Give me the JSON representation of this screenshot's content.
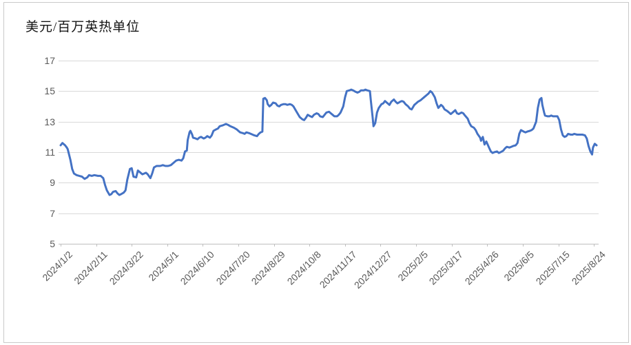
{
  "colors": {
    "line": "#4472C4",
    "gridline": "#d9d9d9",
    "axis": "#bfbfbf",
    "tick_label": "#595959",
    "title_text": "#141414",
    "frame_border": "#c9c9c9",
    "background": "#ffffff"
  },
  "chart_data": {
    "type": "line",
    "title": "美元/百万英热单位",
    "xlabel": "",
    "ylabel": "",
    "ylim": [
      5,
      17
    ],
    "y_ticks": [
      17,
      15,
      13,
      11,
      9,
      7,
      5
    ],
    "x_tick_labels": [
      "2024/1/2",
      "2024/2/11",
      "2024/3/22",
      "2024/5/1",
      "2024/6/10",
      "2024/7/20",
      "2024/8/29",
      "2024/10/8",
      "2024/11/17",
      "2024/12/27",
      "2025/2/5",
      "2025/3/17",
      "2025/4/26",
      "2025/6/5",
      "2025/7/15",
      "2025/8/24"
    ],
    "x_tick_day_offsets": [
      0,
      40,
      80,
      120,
      160,
      200,
      240,
      280,
      320,
      360,
      400,
      440,
      480,
      520,
      560,
      600
    ],
    "x_unit": "days since 2024/1/2",
    "x_range_days": [
      0,
      603
    ],
    "grid": "horizontal",
    "legend": "none",
    "points": [
      [
        0,
        11.45
      ],
      [
        2,
        11.6
      ],
      [
        5,
        11.45
      ],
      [
        7,
        11.3
      ],
      [
        8,
        11.2
      ],
      [
        11,
        10.5
      ],
      [
        13,
        9.9
      ],
      [
        15,
        9.6
      ],
      [
        18,
        9.5
      ],
      [
        21,
        9.45
      ],
      [
        24,
        9.4
      ],
      [
        27,
        9.25
      ],
      [
        30,
        9.35
      ],
      [
        32,
        9.5
      ],
      [
        35,
        9.45
      ],
      [
        38,
        9.5
      ],
      [
        42,
        9.45
      ],
      [
        45,
        9.45
      ],
      [
        48,
        9.3
      ],
      [
        50,
        8.85
      ],
      [
        52,
        8.5
      ],
      [
        55,
        8.2
      ],
      [
        57,
        8.25
      ],
      [
        59,
        8.4
      ],
      [
        62,
        8.45
      ],
      [
        64,
        8.3
      ],
      [
        66,
        8.2
      ],
      [
        68,
        8.25
      ],
      [
        71,
        8.35
      ],
      [
        73,
        8.5
      ],
      [
        75,
        9.2
      ],
      [
        78,
        9.9
      ],
      [
        80,
        9.95
      ],
      [
        82,
        9.4
      ],
      [
        85,
        9.35
      ],
      [
        87,
        9.8
      ],
      [
        89,
        9.7
      ],
      [
        92,
        9.55
      ],
      [
        94,
        9.6
      ],
      [
        96,
        9.65
      ],
      [
        98,
        9.55
      ],
      [
        101,
        9.3
      ],
      [
        103,
        9.6
      ],
      [
        105,
        10.0
      ],
      [
        108,
        10.1
      ],
      [
        112,
        10.1
      ],
      [
        115,
        10.15
      ],
      [
        118,
        10.1
      ],
      [
        121,
        10.1
      ],
      [
        124,
        10.15
      ],
      [
        127,
        10.3
      ],
      [
        130,
        10.45
      ],
      [
        133,
        10.5
      ],
      [
        136,
        10.45
      ],
      [
        138,
        10.6
      ],
      [
        140,
        11.05
      ],
      [
        142,
        11.1
      ],
      [
        143,
        11.8
      ],
      [
        145,
        12.3
      ],
      [
        146,
        12.4
      ],
      [
        148,
        12.15
      ],
      [
        149,
        11.95
      ],
      [
        152,
        11.9
      ],
      [
        154,
        11.85
      ],
      [
        156,
        11.95
      ],
      [
        158,
        12.0
      ],
      [
        161,
        11.9
      ],
      [
        163,
        11.95
      ],
      [
        165,
        12.05
      ],
      [
        168,
        11.95
      ],
      [
        170,
        12.1
      ],
      [
        172,
        12.4
      ],
      [
        175,
        12.5
      ],
      [
        177,
        12.55
      ],
      [
        179,
        12.7
      ],
      [
        182,
        12.75
      ],
      [
        184,
        12.8
      ],
      [
        186,
        12.85
      ],
      [
        188,
        12.8
      ],
      [
        191,
        12.7
      ],
      [
        193,
        12.65
      ],
      [
        195,
        12.6
      ],
      [
        198,
        12.5
      ],
      [
        200,
        12.4
      ],
      [
        202,
        12.3
      ],
      [
        205,
        12.25
      ],
      [
        207,
        12.2
      ],
      [
        209,
        12.3
      ],
      [
        212,
        12.25
      ],
      [
        214,
        12.2
      ],
      [
        216,
        12.15
      ],
      [
        218,
        12.1
      ],
      [
        221,
        12.05
      ],
      [
        223,
        12.2
      ],
      [
        225,
        12.3
      ],
      [
        227,
        12.35
      ],
      [
        228,
        14.5
      ],
      [
        230,
        14.55
      ],
      [
        232,
        14.4
      ],
      [
        233,
        14.15
      ],
      [
        235,
        14.0
      ],
      [
        237,
        14.1
      ],
      [
        239,
        14.25
      ],
      [
        242,
        14.2
      ],
      [
        244,
        14.05
      ],
      [
        246,
        14.0
      ],
      [
        248,
        14.1
      ],
      [
        251,
        14.15
      ],
      [
        253,
        14.15
      ],
      [
        255,
        14.1
      ],
      [
        258,
        14.15
      ],
      [
        260,
        14.1
      ],
      [
        262,
        14.0
      ],
      [
        265,
        13.7
      ],
      [
        267,
        13.5
      ],
      [
        269,
        13.3
      ],
      [
        272,
        13.15
      ],
      [
        274,
        13.1
      ],
      [
        276,
        13.25
      ],
      [
        278,
        13.45
      ],
      [
        281,
        13.35
      ],
      [
        283,
        13.3
      ],
      [
        285,
        13.45
      ],
      [
        288,
        13.55
      ],
      [
        290,
        13.5
      ],
      [
        292,
        13.35
      ],
      [
        295,
        13.3
      ],
      [
        297,
        13.45
      ],
      [
        299,
        13.6
      ],
      [
        302,
        13.65
      ],
      [
        304,
        13.55
      ],
      [
        306,
        13.45
      ],
      [
        308,
        13.35
      ],
      [
        311,
        13.35
      ],
      [
        313,
        13.45
      ],
      [
        315,
        13.6
      ],
      [
        318,
        14.0
      ],
      [
        320,
        14.6
      ],
      [
        322,
        15.0
      ],
      [
        325,
        15.05
      ],
      [
        327,
        15.1
      ],
      [
        329,
        15.05
      ],
      [
        332,
        14.95
      ],
      [
        334,
        14.9
      ],
      [
        336,
        14.95
      ],
      [
        338,
        15.05
      ],
      [
        341,
        15.05
      ],
      [
        343,
        15.1
      ],
      [
        345,
        15.05
      ],
      [
        348,
        15.0
      ],
      [
        349,
        14.4
      ],
      [
        351,
        13.3
      ],
      [
        352,
        12.7
      ],
      [
        354,
        12.9
      ],
      [
        356,
        13.6
      ],
      [
        358,
        13.9
      ],
      [
        361,
        14.15
      ],
      [
        363,
        14.2
      ],
      [
        365,
        14.35
      ],
      [
        368,
        14.2
      ],
      [
        370,
        14.1
      ],
      [
        372,
        14.3
      ],
      [
        375,
        14.45
      ],
      [
        377,
        14.3
      ],
      [
        379,
        14.2
      ],
      [
        382,
        14.3
      ],
      [
        384,
        14.35
      ],
      [
        386,
        14.3
      ],
      [
        388,
        14.15
      ],
      [
        391,
        14.0
      ],
      [
        393,
        13.85
      ],
      [
        395,
        13.8
      ],
      [
        398,
        14.1
      ],
      [
        400,
        14.2
      ],
      [
        402,
        14.3
      ],
      [
        405,
        14.4
      ],
      [
        407,
        14.5
      ],
      [
        409,
        14.6
      ],
      [
        412,
        14.75
      ],
      [
        414,
        14.85
      ],
      [
        416,
        15.0
      ],
      [
        418,
        14.9
      ],
      [
        421,
        14.6
      ],
      [
        423,
        14.2
      ],
      [
        425,
        13.9
      ],
      [
        428,
        14.1
      ],
      [
        430,
        14.0
      ],
      [
        432,
        13.8
      ],
      [
        435,
        13.7
      ],
      [
        437,
        13.6
      ],
      [
        439,
        13.5
      ],
      [
        442,
        13.65
      ],
      [
        444,
        13.75
      ],
      [
        446,
        13.55
      ],
      [
        448,
        13.5
      ],
      [
        451,
        13.6
      ],
      [
        453,
        13.55
      ],
      [
        455,
        13.4
      ],
      [
        458,
        13.2
      ],
      [
        460,
        12.9
      ],
      [
        462,
        12.7
      ],
      [
        465,
        12.6
      ],
      [
        467,
        12.45
      ],
      [
        469,
        12.2
      ],
      [
        472,
        11.95
      ],
      [
        473,
        11.75
      ],
      [
        475,
        12.0
      ],
      [
        477,
        11.5
      ],
      [
        479,
        11.7
      ],
      [
        482,
        11.3
      ],
      [
        484,
        11.05
      ],
      [
        486,
        10.95
      ],
      [
        488,
        11.0
      ],
      [
        491,
        11.05
      ],
      [
        493,
        10.95
      ],
      [
        495,
        11.0
      ],
      [
        498,
        11.1
      ],
      [
        500,
        11.25
      ],
      [
        502,
        11.35
      ],
      [
        505,
        11.3
      ],
      [
        507,
        11.35
      ],
      [
        509,
        11.4
      ],
      [
        512,
        11.45
      ],
      [
        514,
        11.6
      ],
      [
        516,
        12.2
      ],
      [
        518,
        12.45
      ],
      [
        521,
        12.35
      ],
      [
        523,
        12.3
      ],
      [
        525,
        12.35
      ],
      [
        528,
        12.4
      ],
      [
        530,
        12.45
      ],
      [
        532,
        12.55
      ],
      [
        535,
        13.0
      ],
      [
        537,
        13.9
      ],
      [
        539,
        14.45
      ],
      [
        541,
        14.55
      ],
      [
        542,
        14.1
      ],
      [
        544,
        13.6
      ],
      [
        545,
        13.4
      ],
      [
        548,
        13.35
      ],
      [
        550,
        13.35
      ],
      [
        552,
        13.4
      ],
      [
        554,
        13.35
      ],
      [
        557,
        13.35
      ],
      [
        559,
        13.35
      ],
      [
        561,
        13.1
      ],
      [
        563,
        12.5
      ],
      [
        565,
        12.1
      ],
      [
        567,
        12.0
      ],
      [
        569,
        12.05
      ],
      [
        571,
        12.2
      ],
      [
        574,
        12.15
      ],
      [
        576,
        12.15
      ],
      [
        578,
        12.2
      ],
      [
        581,
        12.15
      ],
      [
        583,
        12.15
      ],
      [
        585,
        12.15
      ],
      [
        587,
        12.15
      ],
      [
        590,
        12.1
      ],
      [
        592,
        11.9
      ],
      [
        594,
        11.4
      ],
      [
        596,
        11.05
      ],
      [
        598,
        10.85
      ],
      [
        599,
        11.3
      ],
      [
        601,
        11.55
      ],
      [
        603,
        11.45
      ]
    ]
  }
}
